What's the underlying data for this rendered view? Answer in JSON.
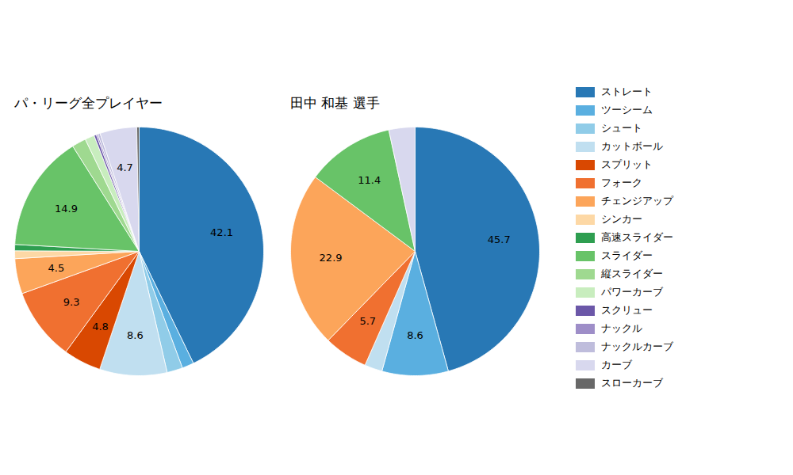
{
  "chart_data": [
    {
      "type": "pie",
      "title": "パ・リーグ全プレイヤー",
      "categories": [
        "ストレート",
        "ツーシーム",
        "シュート",
        "カットボール",
        "スプリット",
        "フォーク",
        "チェンジアップ",
        "シンカー",
        "高速スライダー",
        "スライダー",
        "縦スライダー",
        "パワーカーブ",
        "スクリュー",
        "ナックル",
        "ナックルカーブ",
        "カーブ",
        "スローカーブ"
      ],
      "values": [
        42.1,
        1.5,
        2.0,
        8.6,
        4.8,
        9.3,
        4.5,
        1.0,
        0.8,
        14.9,
        1.8,
        1.2,
        0.3,
        0.2,
        0.3,
        4.7,
        0.3
      ],
      "colors": [
        "#2878b5",
        "#5aafe0",
        "#90cce8",
        "#c0dff0",
        "#d94801",
        "#f07030",
        "#fca55a",
        "#fdd8a5",
        "#2e9e50",
        "#68c368",
        "#9fd990",
        "#c8edbe",
        "#6b57a8",
        "#9e8ec8",
        "#bfbddc",
        "#d8d8ee",
        "#686868"
      ],
      "value_labels": [
        "42.1",
        null,
        null,
        "8.6",
        "4.8",
        "9.3",
        "4.5",
        null,
        null,
        "14.9",
        null,
        null,
        null,
        null,
        null,
        "4.7",
        null
      ],
      "data_labels": true,
      "legend": "right"
    },
    {
      "type": "pie",
      "title": "田中 和基 選手",
      "categories": [
        "ストレート",
        "ツーシーム",
        "カットボール",
        "フォーク",
        "チェンジアップ",
        "スライダー",
        "カーブ"
      ],
      "values": [
        45.7,
        8.6,
        2.3,
        5.7,
        22.9,
        11.4,
        3.4
      ],
      "colors": [
        "#2878b5",
        "#5aafe0",
        "#c0dff0",
        "#f07030",
        "#fca55a",
        "#68c368",
        "#d8d8ee"
      ],
      "value_labels": [
        "45.7",
        "8.6",
        null,
        "5.7",
        "22.9",
        "11.4",
        null
      ],
      "data_labels": true,
      "legend": "right"
    }
  ]
}
